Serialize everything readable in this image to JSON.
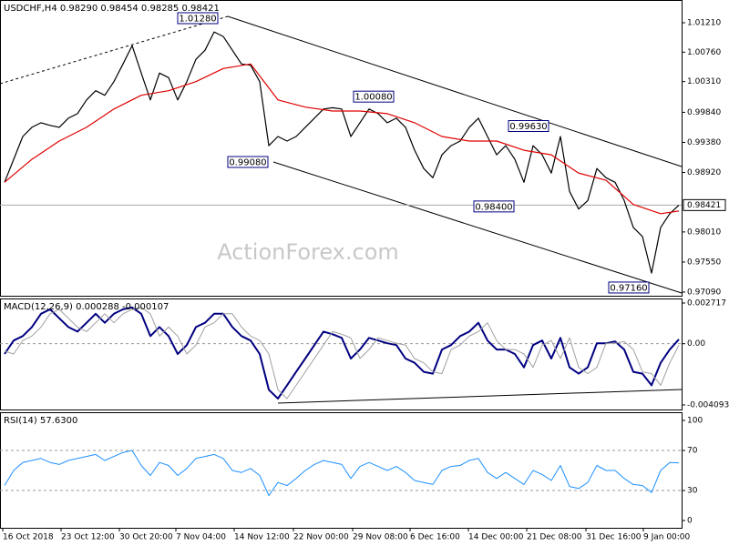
{
  "chart_data": [
    {
      "type": "line",
      "title": "USDCHF,H4 0.98290 0.98454 0.98285 0.98421",
      "watermark": "ActionForex.com",
      "xlim": [
        -0.5,
        74.3
      ],
      "ylim": [
        0.97034,
        1.01558
      ],
      "yticks": [
        {
          "value": 1.0121,
          "label": "1.01210"
        },
        {
          "value": 1.0076,
          "label": "1.00760"
        },
        {
          "value": 1.0031,
          "label": "1.00310"
        },
        {
          "value": 0.9984,
          "label": "0.99840"
        },
        {
          "value": 0.9938,
          "label": "0.99380"
        },
        {
          "value": 0.9892,
          "label": "0.98920"
        },
        {
          "value": 0.9801,
          "label": "0.98010"
        },
        {
          "value": 0.9755,
          "label": "0.97550"
        },
        {
          "value": 0.9709,
          "label": "0.97090"
        }
      ],
      "current_price": {
        "value": 0.98421,
        "label": "0.98421"
      },
      "series": [
        {
          "color": "#000000",
          "x": [
            0,
            1,
            2,
            3,
            4,
            5,
            6,
            7,
            8,
            9,
            10,
            11,
            12,
            13,
            14,
            15,
            16,
            17,
            18,
            19,
            20,
            21,
            22,
            23,
            24,
            25,
            26,
            27,
            28,
            29,
            30,
            31,
            32,
            33,
            34,
            35,
            36,
            37,
            38,
            39,
            40,
            41,
            42,
            43,
            44,
            45,
            46,
            47,
            48,
            49,
            50,
            51,
            52,
            53,
            54,
            55,
            56,
            57,
            58,
            59,
            60,
            61,
            62,
            63,
            64,
            65,
            66,
            67,
            68,
            69,
            70,
            71,
            72,
            73,
            74
          ],
          "values": [
            0.9877,
            0.9912,
            0.9947,
            0.9961,
            0.9968,
            0.9964,
            0.9961,
            0.9975,
            0.9982,
            1.0003,
            1.0017,
            1.001,
            1.0031,
            1.0058,
            1.0086,
            1.0044,
            1.0003,
            1.0044,
            1.0037,
            1.0003,
            1.0031,
            1.0065,
            1.0079,
            1.0107,
            1.01,
            1.0079,
            1.0058,
            1.0056,
            1.0031,
            0.9933,
            0.9947,
            0.994,
            0.9947,
            0.9961,
            0.9975,
            0.9989,
            0.9991,
            0.9989,
            0.9947,
            0.9968,
            0.9989,
            0.9982,
            0.9968,
            0.9975,
            0.9961,
            0.9926,
            0.9898,
            0.9884,
            0.9919,
            0.9933,
            0.994,
            0.9961,
            0.9975,
            0.9947,
            0.9919,
            0.9933,
            0.9912,
            0.9877,
            0.9933,
            0.9919,
            0.9891,
            0.9947,
            0.9863,
            0.9836,
            0.9849,
            0.9898,
            0.9884,
            0.9877,
            0.9849,
            0.9808,
            0.9794,
            0.9738,
            0.9808,
            0.9829,
            0.98421
          ]
        },
        {
          "color": "#e00000",
          "x": [
            0,
            3,
            6,
            9,
            12,
            15,
            18,
            21,
            24,
            27,
            30,
            33,
            36,
            39,
            42,
            45,
            48,
            51,
            54,
            57,
            60,
            63,
            66,
            69,
            72,
            74
          ],
          "values": [
            0.9877,
            0.9912,
            0.994,
            0.9961,
            0.9989,
            1.001,
            1.0017,
            1.0031,
            1.0051,
            1.0058,
            1.0003,
            0.9992,
            0.9986,
            0.9986,
            0.9982,
            0.9968,
            0.9947,
            0.994,
            0.994,
            0.9926,
            0.9919,
            0.9891,
            0.988,
            0.9843,
            0.9829,
            0.9833
          ]
        }
      ],
      "annotations": [
        {
          "x": 21.2,
          "value": 1.0128,
          "label": "1.01280"
        },
        {
          "x": 40.5,
          "value": 1.0008,
          "label": "1.00080"
        },
        {
          "x": 57.5,
          "value": 0.9963,
          "label": "0.99630"
        },
        {
          "x": 26.7,
          "value": 0.9908,
          "label": "0.99080"
        },
        {
          "x": 53.7,
          "value": 0.984,
          "label": "0.98400"
        },
        {
          "x": 68.5,
          "value": 0.9716,
          "label": "0.97160"
        }
      ]
    },
    {
      "type": "line",
      "title": "MACD(12,26,9) 0.000288 -0.000107",
      "xlim": [
        -0.5,
        74.3
      ],
      "ylim": [
        -0.004093,
        0.002717
      ],
      "yticks": [
        0.002717,
        {
          "value": 0,
          "label": "0.00"
        },
        -0.004093
      ],
      "levels": [
        0
      ],
      "series": [
        {
          "color": "#000080",
          "width": 2,
          "x": [
            0,
            1,
            2,
            3,
            4,
            5,
            6,
            7,
            8,
            9,
            10,
            11,
            12,
            13,
            14,
            15,
            16,
            17,
            18,
            19,
            20,
            21,
            22,
            23,
            24,
            25,
            26,
            27,
            28,
            29,
            30,
            31,
            32,
            33,
            34,
            35,
            36,
            37,
            38,
            39,
            40,
            41,
            42,
            43,
            44,
            45,
            46,
            47,
            48,
            49,
            50,
            51,
            52,
            53,
            54,
            55,
            56,
            57,
            58,
            59,
            60,
            61,
            62,
            63,
            64,
            65,
            66,
            67,
            68,
            69,
            70,
            71,
            72,
            73,
            74
          ],
          "values": [
            -0.00069,
            0.00021,
            0.00051,
            0.00111,
            0.002,
            0.0023,
            0.0017,
            0.00111,
            0.00081,
            0.0014,
            0.002,
            0.0014,
            0.002,
            0.0023,
            0.00242,
            0.002,
            0.00051,
            0.00111,
            0.00051,
            -0.00069,
            -9e-05,
            0.00111,
            0.0014,
            0.002,
            0.002,
            0.00111,
            0.00051,
            0.00021,
            -0.00069,
            -0.00308,
            -0.00367,
            -0.00278,
            -0.00188,
            -0.00099,
            -9e-05,
            0.00081,
            0.00063,
            0.00039,
            -0.00099,
            -0.00039,
            0.00039,
            0.00021,
            3e-05,
            -9e-05,
            -0.00099,
            -0.00128,
            -0.00188,
            -0.002,
            -0.00039,
            -9e-05,
            0.00051,
            0.00081,
            0.0014,
            0.00021,
            -0.00039,
            -0.00039,
            -0.00069,
            -0.00158,
            -9e-05,
            0.00021,
            -0.00099,
            0.00039,
            -0.00158,
            -0.002,
            -0.00158,
            3e-05,
            3e-05,
            0.00015,
            -0.00039,
            -0.00188,
            -0.002,
            -0.00278,
            -0.00128,
            -0.00039,
            0.000288
          ]
        },
        {
          "color": "#a0a0a0",
          "width": 1,
          "x": [
            0,
            1,
            2,
            3,
            4,
            5,
            6,
            7,
            8,
            9,
            10,
            11,
            12,
            13,
            14,
            15,
            16,
            17,
            18,
            19,
            20,
            21,
            22,
            23,
            24,
            25,
            26,
            27,
            28,
            29,
            30,
            31,
            32,
            33,
            34,
            35,
            36,
            37,
            38,
            39,
            40,
            41,
            42,
            43,
            44,
            45,
            46,
            47,
            48,
            49,
            50,
            51,
            52,
            53,
            54,
            55,
            56,
            57,
            58,
            59,
            60,
            61,
            62,
            63,
            64,
            65,
            66,
            67,
            68,
            69,
            70,
            71,
            72,
            73,
            74
          ],
          "values": [
            -0.0005,
            -0.00069,
            0.00021,
            0.00051,
            0.00111,
            0.002,
            0.0023,
            0.0017,
            0.00111,
            0.00081,
            0.0014,
            0.002,
            0.0014,
            0.002,
            0.0023,
            0.00242,
            0.002,
            0.00051,
            0.00111,
            0.00051,
            -0.00069,
            -9e-05,
            0.00111,
            0.0014,
            0.002,
            0.002,
            0.00111,
            0.00051,
            0.00021,
            -0.00069,
            -0.00308,
            -0.00367,
            -0.00278,
            -0.00188,
            -0.00099,
            -9e-05,
            0.00081,
            0.00063,
            0.00039,
            -0.00099,
            -0.00039,
            0.00039,
            0.00021,
            3e-05,
            -9e-05,
            -0.00099,
            -0.00128,
            -0.00188,
            -0.002,
            -0.00039,
            -9e-05,
            0.00051,
            0.00081,
            0.0014,
            0.00021,
            -0.00039,
            -0.00039,
            -0.00069,
            -0.00158,
            -9e-05,
            0.00021,
            -0.00099,
            0.00039,
            -0.00158,
            -0.002,
            -0.00158,
            3e-05,
            3e-05,
            0.00015,
            -0.00039,
            -0.00188,
            -0.002,
            -0.00278,
            -0.00128,
            -0.000107
          ]
        }
      ]
    },
    {
      "type": "line",
      "title": "RSI(14) 57.6300",
      "xlim": [
        -0.5,
        74.3
      ],
      "ylim": [
        0,
        100
      ],
      "yticks": [
        100,
        70,
        30,
        0
      ],
      "levels": [
        70,
        30
      ],
      "xticks": [
        {
          "value": -0.2,
          "label": "16 Oct 2018"
        },
        {
          "value": 6.2,
          "label": "23 Oct 12:00"
        },
        {
          "value": 12.6,
          "label": "30 Oct 20:00"
        },
        {
          "value": 18.8,
          "label": "7 Nov 04:00"
        },
        {
          "value": 25.2,
          "label": "14 Nov 12:00"
        },
        {
          "value": 31.7,
          "label": "22 Nov 00:00"
        },
        {
          "value": 38.2,
          "label": "29 Nov 08:00"
        },
        {
          "value": 44.5,
          "label": "6 Dec 16:00"
        },
        {
          "value": 50.9,
          "label": "14 Dec 00:00"
        },
        {
          "value": 57.3,
          "label": "21 Dec 08:00"
        },
        {
          "value": 63.8,
          "label": "31 Dec 16:00"
        },
        {
          "value": 70.1,
          "label": "9 Jan 00:00"
        }
      ],
      "series": [
        {
          "color": "#1e90ff",
          "width": 1,
          "x": [
            0,
            1,
            2,
            3,
            4,
            5,
            6,
            7,
            8,
            9,
            10,
            11,
            12,
            13,
            14,
            15,
            16,
            17,
            18,
            19,
            20,
            21,
            22,
            23,
            24,
            25,
            26,
            27,
            28,
            29,
            30,
            31,
            32,
            33,
            34,
            35,
            36,
            37,
            38,
            39,
            40,
            41,
            42,
            43,
            44,
            45,
            46,
            47,
            48,
            49,
            50,
            51,
            52,
            53,
            54,
            55,
            56,
            57,
            58,
            59,
            60,
            61,
            62,
            63,
            64,
            65,
            66,
            67,
            68,
            69,
            70,
            71,
            72,
            73,
            74
          ],
          "values": [
            35,
            50,
            58,
            60,
            62,
            58,
            56,
            60,
            62,
            64,
            66,
            60,
            64,
            68,
            70,
            55,
            45,
            58,
            55,
            45,
            52,
            62,
            64,
            66,
            62,
            50,
            48,
            52,
            45,
            25,
            38,
            35,
            42,
            50,
            56,
            60,
            58,
            56,
            42,
            54,
            58,
            54,
            50,
            54,
            48,
            40,
            38,
            36,
            50,
            54,
            55,
            60,
            62,
            48,
            42,
            48,
            42,
            36,
            50,
            46,
            40,
            55,
            34,
            32,
            38,
            55,
            50,
            50,
            42,
            36,
            35,
            28,
            50,
            58,
            57.63
          ]
        }
      ]
    }
  ]
}
